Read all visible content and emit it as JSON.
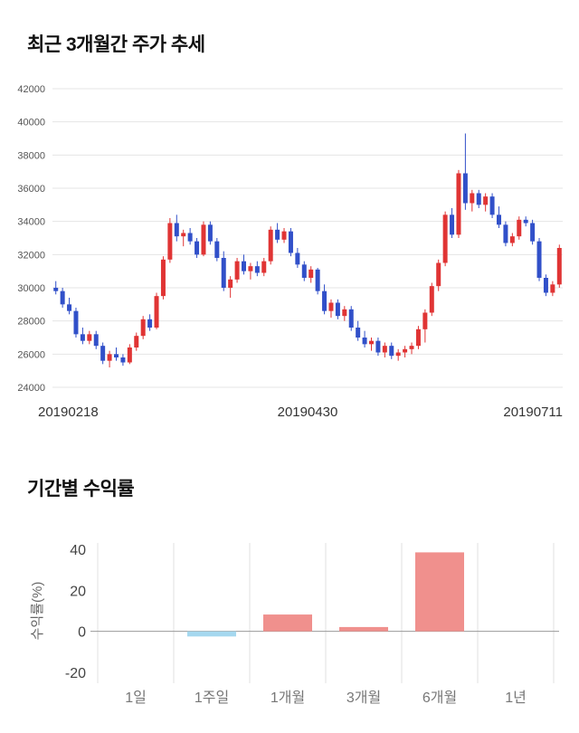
{
  "page": {
    "background": "#ffffff"
  },
  "chart_data": [
    {
      "type": "candlestick",
      "title": "최근 3개월간 주가 추세",
      "ylim": [
        24000,
        42000
      ],
      "y_ticks": [
        42000,
        40000,
        38000,
        36000,
        34000,
        32000,
        30000,
        28000,
        26000,
        24000
      ],
      "x_labels": [
        "20190218",
        "20190430",
        "20190711"
      ],
      "up_color": "#e03434",
      "down_color": "#3150c9",
      "grid_color": "#e4e4e4",
      "candles": [
        [
          30000,
          30400,
          29600,
          29800
        ],
        [
          29800,
          30000,
          28800,
          29000
        ],
        [
          29000,
          29400,
          28400,
          28600
        ],
        [
          28600,
          28800,
          27000,
          27200
        ],
        [
          27200,
          27600,
          26600,
          26800
        ],
        [
          26800,
          27400,
          26600,
          27200
        ],
        [
          27200,
          27400,
          26300,
          26500
        ],
        [
          26500,
          26700,
          25400,
          25600
        ],
        [
          25600,
          26200,
          25200,
          26000
        ],
        [
          26000,
          26400,
          25600,
          25800
        ],
        [
          25800,
          26000,
          25300,
          25500
        ],
        [
          25500,
          26600,
          25400,
          26400
        ],
        [
          26400,
          27300,
          26200,
          27100
        ],
        [
          27100,
          28300,
          26900,
          28100
        ],
        [
          28100,
          28400,
          27400,
          27600
        ],
        [
          27600,
          29700,
          27500,
          29500
        ],
        [
          29500,
          31900,
          29300,
          31700
        ],
        [
          31700,
          34200,
          31500,
          33900
        ],
        [
          33900,
          34400,
          32800,
          33100
        ],
        [
          33100,
          33500,
          32500,
          33300
        ],
        [
          33300,
          33600,
          32600,
          32800
        ],
        [
          32800,
          33000,
          31800,
          32000
        ],
        [
          32000,
          34000,
          31900,
          33800
        ],
        [
          33800,
          34000,
          32600,
          32800
        ],
        [
          32800,
          33000,
          31600,
          31800
        ],
        [
          31800,
          32200,
          29800,
          30000
        ],
        [
          30000,
          30700,
          29400,
          30500
        ],
        [
          30500,
          31800,
          30300,
          31600
        ],
        [
          31600,
          32000,
          30800,
          31000
        ],
        [
          31000,
          31500,
          30500,
          31300
        ],
        [
          31300,
          31600,
          30700,
          30900
        ],
        [
          30900,
          31800,
          30700,
          31600
        ],
        [
          31600,
          33700,
          31400,
          33500
        ],
        [
          33500,
          33900,
          32700,
          32900
        ],
        [
          32900,
          33600,
          32700,
          33400
        ],
        [
          33400,
          33600,
          31900,
          32100
        ],
        [
          32100,
          32400,
          31200,
          31400
        ],
        [
          31400,
          31600,
          30400,
          30600
        ],
        [
          30600,
          31300,
          30300,
          31100
        ],
        [
          31100,
          31200,
          29600,
          29800
        ],
        [
          29800,
          30200,
          28400,
          28600
        ],
        [
          28600,
          29300,
          28200,
          29100
        ],
        [
          29100,
          29300,
          28100,
          28300
        ],
        [
          28300,
          28900,
          28000,
          28700
        ],
        [
          28700,
          28900,
          27400,
          27600
        ],
        [
          27600,
          28000,
          26800,
          27000
        ],
        [
          27000,
          27400,
          26400,
          26600
        ],
        [
          26600,
          27000,
          26200,
          26800
        ],
        [
          26800,
          27000,
          25900,
          26100
        ],
        [
          26100,
          26700,
          25800,
          26500
        ],
        [
          26500,
          26700,
          25700,
          25900
        ],
        [
          25900,
          26300,
          25600,
          26100
        ],
        [
          26100,
          26500,
          25800,
          26300
        ],
        [
          26300,
          26700,
          26000,
          26500
        ],
        [
          26500,
          27700,
          26300,
          27500
        ],
        [
          27500,
          28700,
          26700,
          28500
        ],
        [
          28500,
          30300,
          28300,
          30100
        ],
        [
          30100,
          31700,
          29800,
          31500
        ],
        [
          31500,
          34600,
          31300,
          34400
        ],
        [
          34400,
          34800,
          33000,
          33200
        ],
        [
          33200,
          37100,
          33000,
          36900
        ],
        [
          36900,
          39300,
          34700,
          35100
        ],
        [
          35100,
          35900,
          34600,
          35700
        ],
        [
          35700,
          35900,
          34800,
          35000
        ],
        [
          35000,
          35700,
          34600,
          35500
        ],
        [
          35500,
          35700,
          34200,
          34400
        ],
        [
          34400,
          34900,
          33600,
          33800
        ],
        [
          33800,
          34000,
          32500,
          32700
        ],
        [
          32700,
          33300,
          32500,
          33100
        ],
        [
          33100,
          34300,
          32900,
          34100
        ],
        [
          34100,
          34300,
          33700,
          33900
        ],
        [
          33900,
          34100,
          32600,
          32800
        ],
        [
          32800,
          33000,
          30400,
          30600
        ],
        [
          30600,
          30800,
          29500,
          29700
        ],
        [
          29700,
          30400,
          29500,
          30200
        ],
        [
          30200,
          32600,
          30000,
          32400
        ]
      ]
    },
    {
      "type": "bar",
      "title": "기간별 수익률",
      "ylabel": "수익률(%)",
      "categories": [
        "1일",
        "1주일",
        "1개월",
        "3개월",
        "6개월",
        "1년"
      ],
      "values": [
        0,
        -2.5,
        8.2,
        2.1,
        38.5,
        0
      ],
      "ylim": [
        -20,
        40
      ],
      "y_ticks": [
        40,
        20,
        0,
        -20
      ],
      "positive_color": "#f0908d",
      "negative_color": "#a5d8ef",
      "grid_color": "#e2e2e2",
      "zero_line_color": "#999999"
    }
  ]
}
